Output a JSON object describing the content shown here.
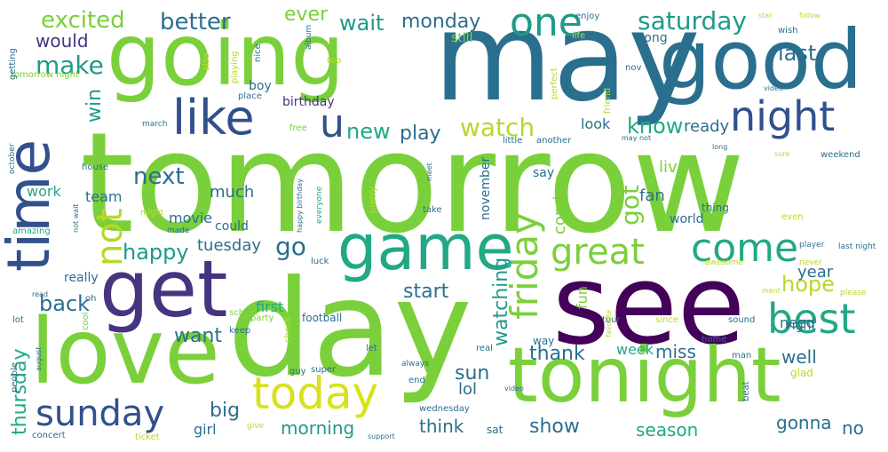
{
  "palette": {
    "green": "#7ad03b",
    "lime": "#b7d82a",
    "teal": "#22a884",
    "teal_dark": "#1f9a8a",
    "blue": "#2a6f8e",
    "blue_dark": "#31508c",
    "purple": "#463480",
    "purple_dark": "#44015a",
    "yellow": "#d8e21a"
  },
  "words": [
    {
      "text": "tomorrow",
      "color": "#7ad03b"
    },
    {
      "text": "may",
      "color": "#2a6f8e"
    },
    {
      "text": "going",
      "color": "#7ad03b"
    },
    {
      "text": "good",
      "color": "#2a6f8e"
    },
    {
      "text": "see",
      "color": "#44015a"
    },
    {
      "text": "day",
      "color": "#7ad03b"
    },
    {
      "text": "tonight",
      "color": "#7ad03b"
    },
    {
      "text": "time",
      "color": "#31508c"
    },
    {
      "text": "get",
      "color": "#463480"
    },
    {
      "text": "love",
      "color": "#7ad03b"
    },
    {
      "text": "game",
      "color": "#22a884"
    },
    {
      "text": "like",
      "color": "#31508c"
    },
    {
      "text": "night",
      "color": "#31508c"
    },
    {
      "text": "one",
      "color": "#1f9a8a"
    },
    {
      "text": "sunday",
      "color": "#31508c"
    },
    {
      "text": "today",
      "color": "#d8e21a"
    },
    {
      "text": "best",
      "color": "#22a884"
    },
    {
      "text": "come",
      "color": "#22a884"
    },
    {
      "text": "great",
      "color": "#7ad03b"
    },
    {
      "text": "friday",
      "color": "#7ad03b"
    },
    {
      "text": "u",
      "color": "#31508c"
    },
    {
      "text": "not",
      "color": "#b7d82a"
    },
    {
      "text": "new",
      "color": "#22a884"
    },
    {
      "text": "watch",
      "color": "#b7d82a"
    },
    {
      "text": "saturday",
      "color": "#1f9a8a"
    },
    {
      "text": "excited",
      "color": "#7ad03b"
    },
    {
      "text": "better",
      "color": "#2a6f8e"
    },
    {
      "text": "ever",
      "color": "#7ad03b"
    },
    {
      "text": "wait",
      "color": "#1f9a8a"
    },
    {
      "text": "monday",
      "color": "#2a6f8e"
    },
    {
      "text": "would",
      "color": "#463480"
    },
    {
      "text": "make",
      "color": "#1f9a8a"
    },
    {
      "text": "last",
      "color": "#2a6f8e"
    },
    {
      "text": "win",
      "color": "#1f9a8a"
    },
    {
      "text": "play",
      "color": "#2a6f8e"
    },
    {
      "text": "know",
      "color": "#22a884"
    },
    {
      "text": "ready",
      "color": "#2a6f8e"
    },
    {
      "text": "next",
      "color": "#2a6f8e"
    },
    {
      "text": "happy",
      "color": "#1f9a8a"
    },
    {
      "text": "go",
      "color": "#2a6f8e"
    },
    {
      "text": "got",
      "color": "#7ad03b"
    },
    {
      "text": "hope",
      "color": "#b7d82a"
    },
    {
      "text": "year",
      "color": "#2a6f8e"
    },
    {
      "text": "back",
      "color": "#2a6f8e"
    },
    {
      "text": "watching",
      "color": "#1f9a8a"
    },
    {
      "text": "start",
      "color": "#2a6f8e"
    },
    {
      "text": "want",
      "color": "#2a6f8e"
    },
    {
      "text": "thank",
      "color": "#2a6f8e"
    },
    {
      "text": "week",
      "color": "#22a884"
    },
    {
      "text": "miss",
      "color": "#2a6f8e"
    },
    {
      "text": "well",
      "color": "#2a6f8e"
    },
    {
      "text": "big",
      "color": "#2a6f8e"
    },
    {
      "text": "sun",
      "color": "#2a6f8e"
    },
    {
      "text": "lol",
      "color": "#2a6f8e"
    },
    {
      "text": "thursday",
      "color": "#22a884"
    },
    {
      "text": "morning",
      "color": "#1f9a8a"
    },
    {
      "text": "think",
      "color": "#2a6f8e"
    },
    {
      "text": "show",
      "color": "#2a6f8e"
    },
    {
      "text": "season",
      "color": "#22a884"
    },
    {
      "text": "gonna",
      "color": "#2a6f8e"
    },
    {
      "text": "no",
      "color": "#2a6f8e"
    },
    {
      "text": "tuesday",
      "color": "#2a6f8e"
    },
    {
      "text": "girl",
      "color": "#2a6f8e"
    },
    {
      "text": "really",
      "color": "#2a6f8e"
    },
    {
      "text": "fun",
      "color": "#7ad03b"
    },
    {
      "text": "coming",
      "color": "#7ad03b"
    },
    {
      "text": "live",
      "color": "#7ad03b"
    },
    {
      "text": "fan",
      "color": "#2a6f8e"
    },
    {
      "text": "much",
      "color": "#2a6f8e"
    },
    {
      "text": "movie",
      "color": "#2a6f8e"
    },
    {
      "text": "team",
      "color": "#2a6f8e"
    },
    {
      "text": "work",
      "color": "#22a884"
    },
    {
      "text": "birthday",
      "color": "#463480"
    },
    {
      "text": "boy",
      "color": "#2a6f8e"
    },
    {
      "text": "song",
      "color": "#2a6f8e"
    },
    {
      "text": "still",
      "color": "#7ad03b"
    },
    {
      "text": "look",
      "color": "#2a6f8e"
    },
    {
      "text": "say",
      "color": "#2a6f8e"
    },
    {
      "text": "need",
      "color": "#2a6f8e"
    },
    {
      "text": "right",
      "color": "#2a6f8e"
    },
    {
      "text": "first",
      "color": "#22a884"
    },
    {
      "text": "could",
      "color": "#2a6f8e"
    },
    {
      "text": "world",
      "color": "#2a6f8e"
    },
    {
      "text": "thing",
      "color": "#2a6f8e"
    },
    {
      "text": "november",
      "color": "#2a6f8e"
    },
    {
      "text": "school",
      "color": "#7ad03b"
    },
    {
      "text": "party",
      "color": "#7ad03b"
    },
    {
      "text": "football",
      "color": "#2a6f8e"
    },
    {
      "text": "keep",
      "color": "#2a6f8e"
    },
    {
      "text": "home",
      "color": "#2a6f8e"
    },
    {
      "text": "check",
      "color": "#b7d82a"
    },
    {
      "text": "way",
      "color": "#2a6f8e"
    },
    {
      "text": "sat",
      "color": "#2a6f8e"
    },
    {
      "text": "glad",
      "color": "#b7d82a"
    },
    {
      "text": "sound",
      "color": "#2a6f8e"
    },
    {
      "text": "since",
      "color": "#b7d82a"
    },
    {
      "text": "tomorrow night",
      "color": "#7ad03b"
    },
    {
      "text": "last night",
      "color": "#2a6f8e"
    },
    {
      "text": "wednesday",
      "color": "#2a6f8e"
    },
    {
      "text": "concert",
      "color": "#2a6f8e"
    },
    {
      "text": "ticket",
      "color": "#b7d82a"
    },
    {
      "text": "give",
      "color": "#b7d82a"
    },
    {
      "text": "people",
      "color": "#2a6f8e"
    },
    {
      "text": "amazing",
      "color": "#22a884"
    },
    {
      "text": "october",
      "color": "#2a6f8e"
    },
    {
      "text": "march",
      "color": "#2a6f8e"
    },
    {
      "text": "house",
      "color": "#2a6f8e"
    },
    {
      "text": "might",
      "color": "#b7d82a"
    },
    {
      "text": "made",
      "color": "#2a6f8e"
    },
    {
      "text": "luck",
      "color": "#2a6f8e"
    },
    {
      "text": "pretty",
      "color": "#b7d82a"
    },
    {
      "text": "everyone",
      "color": "#22a884"
    },
    {
      "text": "little",
      "color": "#2a6f8e"
    },
    {
      "text": "another",
      "color": "#2a6f8e"
    },
    {
      "text": "friend",
      "color": "#b7d82a"
    },
    {
      "text": "perfect",
      "color": "#b7d82a"
    },
    {
      "text": "nov",
      "color": "#2a6f8e"
    },
    {
      "text": "life",
      "color": "#b7d82a"
    },
    {
      "text": "wish",
      "color": "#2a6f8e"
    },
    {
      "text": "enjoy",
      "color": "#2a6f8e"
    },
    {
      "text": "weekend",
      "color": "#2a6f8e"
    },
    {
      "text": "player",
      "color": "#2a6f8e"
    },
    {
      "text": "never",
      "color": "#b7d82a"
    },
    {
      "text": "please",
      "color": "#b7d82a"
    },
    {
      "text": "awesome",
      "color": "#b7d82a"
    },
    {
      "text": "tour",
      "color": "#2a6f8e"
    },
    {
      "text": "real",
      "color": "#2a6f8e"
    },
    {
      "text": "let",
      "color": "#2a6f8e"
    },
    {
      "text": "always",
      "color": "#2a6f8e"
    },
    {
      "text": "guy",
      "color": "#2a6f8e"
    },
    {
      "text": "super",
      "color": "#2a6f8e"
    },
    {
      "text": "cool",
      "color": "#7ad03b"
    },
    {
      "text": "lot",
      "color": "#2a6f8e"
    },
    {
      "text": "oh",
      "color": "#2a6f8e"
    },
    {
      "text": "free",
      "color": "#7ad03b"
    },
    {
      "text": "place",
      "color": "#2a6f8e"
    },
    {
      "text": "playing",
      "color": "#b7d82a"
    },
    {
      "text": "top",
      "color": "#b7d82a"
    },
    {
      "text": "also",
      "color": "#b7d82a"
    },
    {
      "text": "nice",
      "color": "#2a6f8e"
    },
    {
      "text": "album",
      "color": "#2a6f8e"
    },
    {
      "text": "getting",
      "color": "#2a6f8e"
    },
    {
      "text": "take",
      "color": "#2a6f8e"
    },
    {
      "text": "beat",
      "color": "#2a6f8e"
    },
    {
      "text": "man",
      "color": "#2a6f8e"
    },
    {
      "text": "even",
      "color": "#b7d82a"
    },
    {
      "text": "long",
      "color": "#2a6f8e"
    },
    {
      "text": "sure",
      "color": "#b7d82a"
    },
    {
      "text": "star",
      "color": "#b7d82a"
    },
    {
      "text": "follow",
      "color": "#b7d82a"
    },
    {
      "text": "video",
      "color": "#2a6f8e"
    },
    {
      "text": "may not",
      "color": "#2a6f8e"
    },
    {
      "text": "happy birthday",
      "color": "#2a6f8e"
    },
    {
      "text": "meet",
      "color": "#2a6f8e"
    },
    {
      "text": "favorite",
      "color": "#b7d82a"
    },
    {
      "text": "end",
      "color": "#2a6f8e"
    },
    {
      "text": "ment",
      "color": "#b7d82a"
    },
    {
      "text": "read",
      "color": "#2a6f8e"
    },
    {
      "text": "not wait",
      "color": "#2a6f8e"
    },
    {
      "text": "august",
      "color": "#2a6f8e"
    },
    {
      "text": "support",
      "color": "#2a6f8e"
    },
    {
      "text": "video",
      "color": "#2a6f8e"
    }
  ]
}
